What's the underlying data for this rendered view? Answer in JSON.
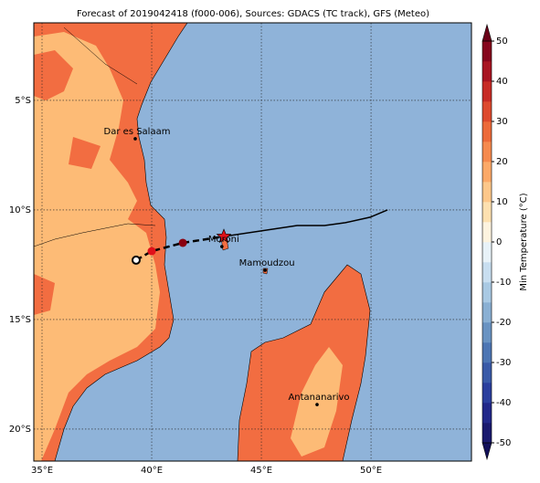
{
  "map": {
    "title": "Forecast of 2019042418 (f000-006), Sources: GDACS (TC track), GFS (Meteo)",
    "xlim": [
      34.625,
      54.58
    ],
    "ylim": [
      -21.46,
      -1.46
    ],
    "lon_ticks": [
      {
        "value": 35,
        "label": "35°E"
      },
      {
        "value": 40,
        "label": "40°E"
      },
      {
        "value": 45,
        "label": "45°E"
      },
      {
        "value": 50,
        "label": "50°E"
      }
    ],
    "lat_ticks": [
      {
        "value": -5,
        "label": "5°S"
      },
      {
        "value": -10,
        "label": "10°S"
      },
      {
        "value": -15,
        "label": "15°S"
      },
      {
        "value": -20,
        "label": "20°S"
      }
    ],
    "cities": [
      {
        "name": "Dar es Salaam",
        "lon": 39.25,
        "lat": -6.75
      },
      {
        "name": "Moroni",
        "lon": 43.2,
        "lat": -11.67
      },
      {
        "name": "Mamoudzou",
        "lon": 45.17,
        "lat": -12.75
      },
      {
        "name": "Antananarivo",
        "lon": 47.54,
        "lat": -18.88
      }
    ],
    "observed_track": {
      "lon": [
        43.29,
        46.63,
        47.88,
        48.83,
        49.96,
        50.75
      ],
      "lat": [
        -11.21,
        -10.71,
        -10.71,
        -10.58,
        -10.33,
        -10.0
      ]
    },
    "forecast_track": {
      "lon": [
        39.29,
        40.0,
        41.42,
        43.29
      ],
      "lat": [
        -12.29,
        -11.88,
        -11.5,
        -11.21
      ]
    },
    "colorbar": {
      "label": "Min Temperature (°C)",
      "lim": [
        -50,
        50
      ],
      "ticks": [
        -50,
        -40,
        -30,
        -20,
        -10,
        0,
        10,
        20,
        30,
        40,
        50
      ],
      "colors": [
        "#1a1a6e",
        "#22288a",
        "#2b3f9e",
        "#3a5aa8",
        "#4d76b4",
        "#6993c2",
        "#8ab0d3",
        "#a9c9e3",
        "#c8def0",
        "#e8f2f8",
        "#fdf3df",
        "#fde0b0",
        "#fdc78a",
        "#fca968",
        "#f58a4e",
        "#ec6a3a",
        "#dd4a2e",
        "#c72c26",
        "#a81522",
        "#86061d"
      ],
      "under": "#12105a",
      "over": "#6b0018"
    }
  }
}
